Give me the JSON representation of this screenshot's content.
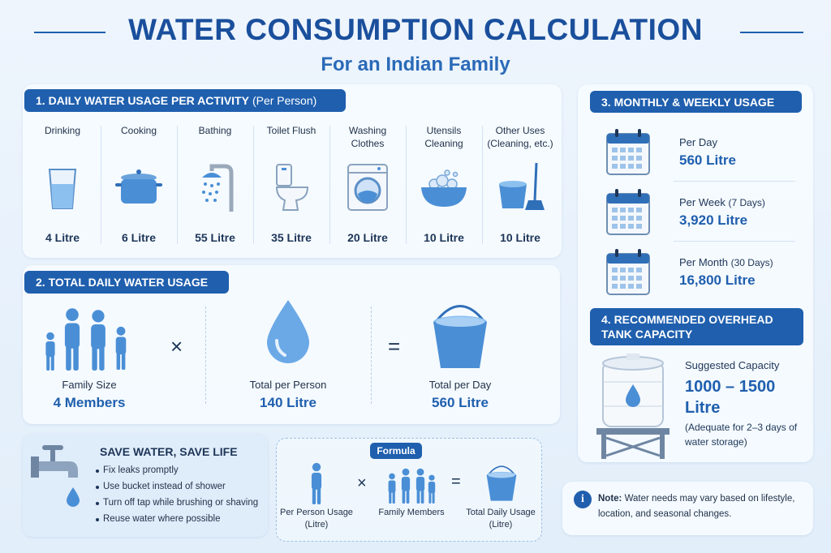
{
  "header": {
    "title": "WATER CONSUMPTION CALCULATION",
    "subtitle": "For an Indian Family"
  },
  "daily_usage": {
    "heading": "1. DAILY WATER USAGE PER ACTIVITY",
    "heading_note": "(Per Person)",
    "activities": [
      {
        "label": "Drinking",
        "amount": "4 Litre"
      },
      {
        "label": "Cooking",
        "amount": "6 Litre"
      },
      {
        "label": "Bathing",
        "amount": "55 Litre"
      },
      {
        "label": "Toilet Flush",
        "amount": "35 Litre"
      },
      {
        "label": "Washing Clothes",
        "amount": "20 Litre"
      },
      {
        "label": "Utensils Cleaning",
        "amount": "10 Litre"
      },
      {
        "label": "Other Uses (Cleaning, etc.)",
        "amount": "10 Litre"
      }
    ]
  },
  "total_usage": {
    "heading": "2. TOTAL DAILY WATER USAGE",
    "operands": [
      {
        "label": "Family Size",
        "value": "4 Members"
      },
      {
        "label": "Total per Person",
        "value": "140 Litre"
      },
      {
        "label": "Total per Day",
        "value": "560 Litre"
      }
    ],
    "operators": [
      "×",
      "="
    ]
  },
  "periodic_usage": {
    "heading": "3. MONTHLY & WEEKLY USAGE",
    "items": [
      {
        "label": "Per Day",
        "value": "560 Litre"
      },
      {
        "label": "Per Week",
        "note": "(7 Days)",
        "value": "3,920 Litre"
      },
      {
        "label": "Per Month",
        "note": "(30 Days)",
        "value": "16,800 Litre"
      }
    ]
  },
  "tank": {
    "heading": "4. RECOMMENDED OVERHEAD TANK CAPACITY",
    "label": "Suggested Capacity",
    "value": "1000 – 1500 Litre",
    "note": "(Adequate for 2–3 days of water storage)"
  },
  "tips": {
    "heading": "SAVE WATER, SAVE LIFE",
    "items": [
      "Fix leaks promptly",
      "Use bucket instead of shower",
      "Turn off tap while brushing or shaving",
      "Reuse water where possible"
    ]
  },
  "formula": {
    "badge": "Formula",
    "terms": [
      "Per Person Usage (Litre)",
      "Family Members",
      "Total Daily Usage (Litre)"
    ],
    "operators": [
      "×",
      "="
    ]
  },
  "note": {
    "label": "Note:",
    "text": "Water needs may vary based on lifestyle, location, and seasonal changes."
  }
}
